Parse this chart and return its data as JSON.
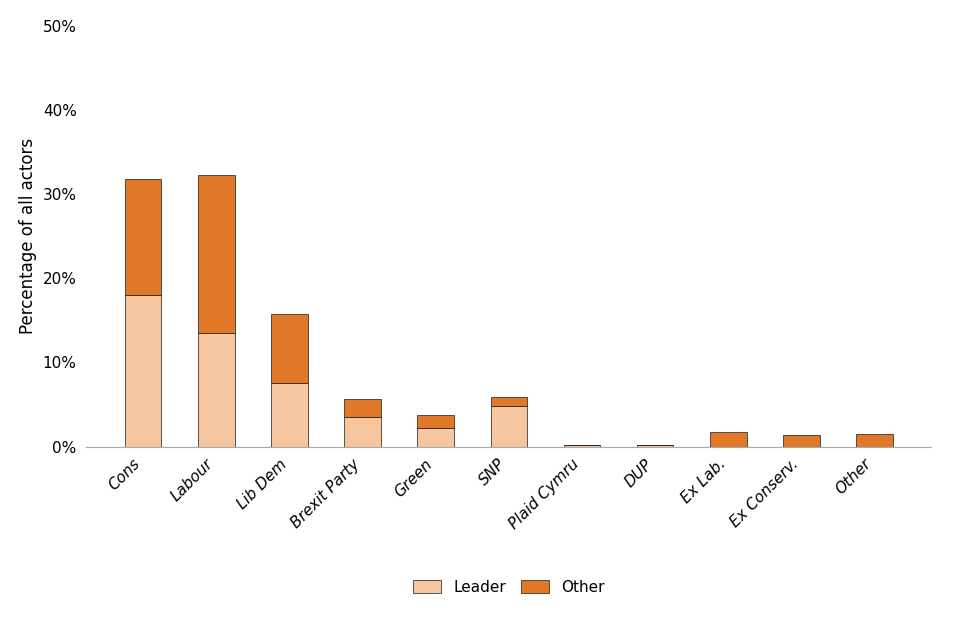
{
  "categories": [
    "Cons",
    "Labour",
    "Lib Dem",
    "Brexit Party",
    "Green",
    "SNP",
    "Plaid Cymru",
    "DUP",
    "Ex Lab.",
    "Ex Conserv.",
    "Other"
  ],
  "leader_values": [
    18.0,
    13.5,
    7.5,
    3.5,
    2.2,
    4.8,
    0.2,
    0.2,
    0.0,
    0.0,
    0.0
  ],
  "other_values": [
    13.8,
    18.7,
    8.3,
    2.2,
    1.5,
    1.1,
    0.0,
    0.0,
    1.7,
    1.4,
    1.5
  ],
  "leader_color": "#f5c6a0",
  "other_color": "#e07828",
  "ylabel": "Percentage of all actors",
  "yticks": [
    0,
    10,
    20,
    30,
    40,
    50
  ],
  "ytick_labels": [
    "0%",
    "10%",
    "20%",
    "30%",
    "40%",
    "50%"
  ],
  "ylim": [
    0,
    50
  ],
  "background_color": "#ffffff",
  "legend_leader": "Leader",
  "legend_other": "Other",
  "bar_width": 0.5,
  "bar_edgecolor": "#1a1a1a",
  "bar_edgewidth": 0.5
}
